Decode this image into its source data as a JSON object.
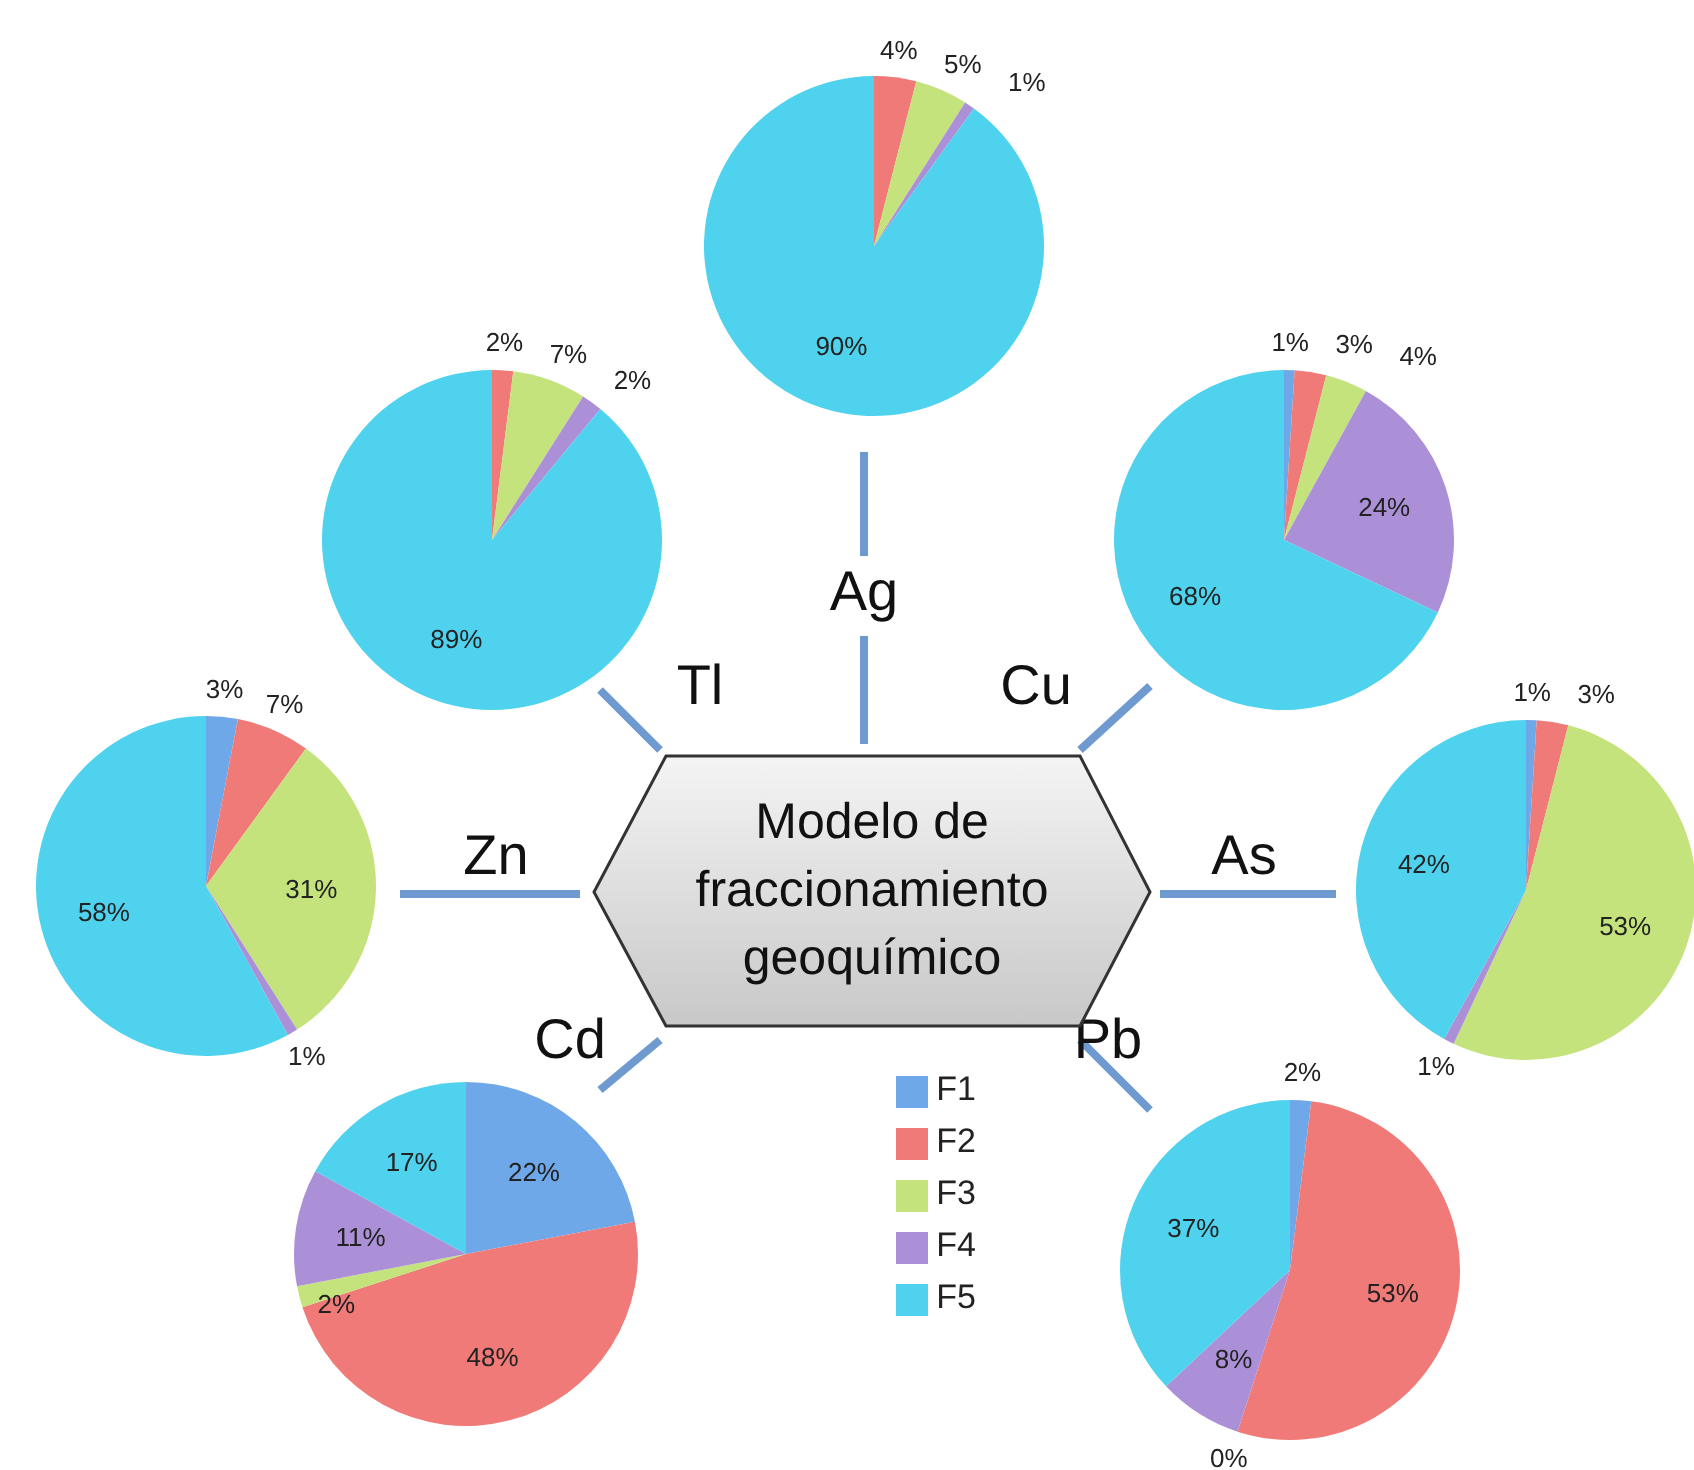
{
  "chart_data": [
    {
      "type": "pie",
      "title": "Ag",
      "values": [
        0,
        4,
        5,
        1,
        90
      ],
      "colors": [
        "#6fa8e8",
        "#f07a78",
        "#c5e37c",
        "#ab90d8",
        "#4fd2ee"
      ],
      "value_labels": [
        null,
        "4%",
        "5%",
        "1%",
        "90%"
      ]
    },
    {
      "type": "pie",
      "title": "Tl",
      "values": [
        0,
        2,
        7,
        2,
        89
      ],
      "colors": [
        "#6fa8e8",
        "#f07a78",
        "#c5e37c",
        "#ab90d8",
        "#4fd2ee"
      ],
      "value_labels": [
        null,
        "2%",
        "7%",
        "2%",
        "89%"
      ]
    },
    {
      "type": "pie",
      "title": "Cu",
      "values": [
        1,
        3,
        4,
        24,
        68
      ],
      "colors": [
        "#6fa8e8",
        "#f07a78",
        "#c5e37c",
        "#ab90d8",
        "#4fd2ee"
      ],
      "value_labels": [
        "1%",
        "3%",
        "4%",
        "24%",
        "68%"
      ]
    },
    {
      "type": "pie",
      "title": "Zn",
      "values": [
        3,
        7,
        31,
        1,
        58
      ],
      "colors": [
        "#6fa8e8",
        "#f07a78",
        "#c5e37c",
        "#ab90d8",
        "#4fd2ee"
      ],
      "value_labels": [
        "3%",
        "7%",
        "31%",
        "1%",
        "58%"
      ]
    },
    {
      "type": "pie",
      "title": "As",
      "values": [
        1,
        3,
        53,
        1,
        42
      ],
      "colors": [
        "#6fa8e8",
        "#f07a78",
        "#c5e37c",
        "#ab90d8",
        "#4fd2ee"
      ],
      "value_labels": [
        "1%",
        "3%",
        "53%",
        "1%",
        "42%"
      ]
    },
    {
      "type": "pie",
      "title": "Cd",
      "categories": [
        "F1",
        "F2",
        "F3",
        "F4",
        "F5"
      ],
      "values": [
        22,
        48,
        2,
        11,
        17
      ],
      "colors": [
        "#6fa8e8",
        "#f07a78",
        "#c5e37c",
        "#ab90d8",
        "#4fd2ee"
      ],
      "value_labels": [
        "22%",
        "48%",
        "2%",
        "11%",
        "17%"
      ],
      "legend": "right"
    },
    {
      "type": "pie",
      "title": "Pb",
      "values": [
        2,
        53,
        0,
        8,
        37
      ],
      "colors": [
        "#6fa8e8",
        "#f07a78",
        "#c5e37c",
        "#ab90d8",
        "#4fd2ee"
      ],
      "value_labels": [
        "2%",
        "53%",
        "0%",
        "8%",
        "37%"
      ]
    },
    {
      "type": "other",
      "title": "Modelo de fraccionamiento geoquímico"
    }
  ]
}
